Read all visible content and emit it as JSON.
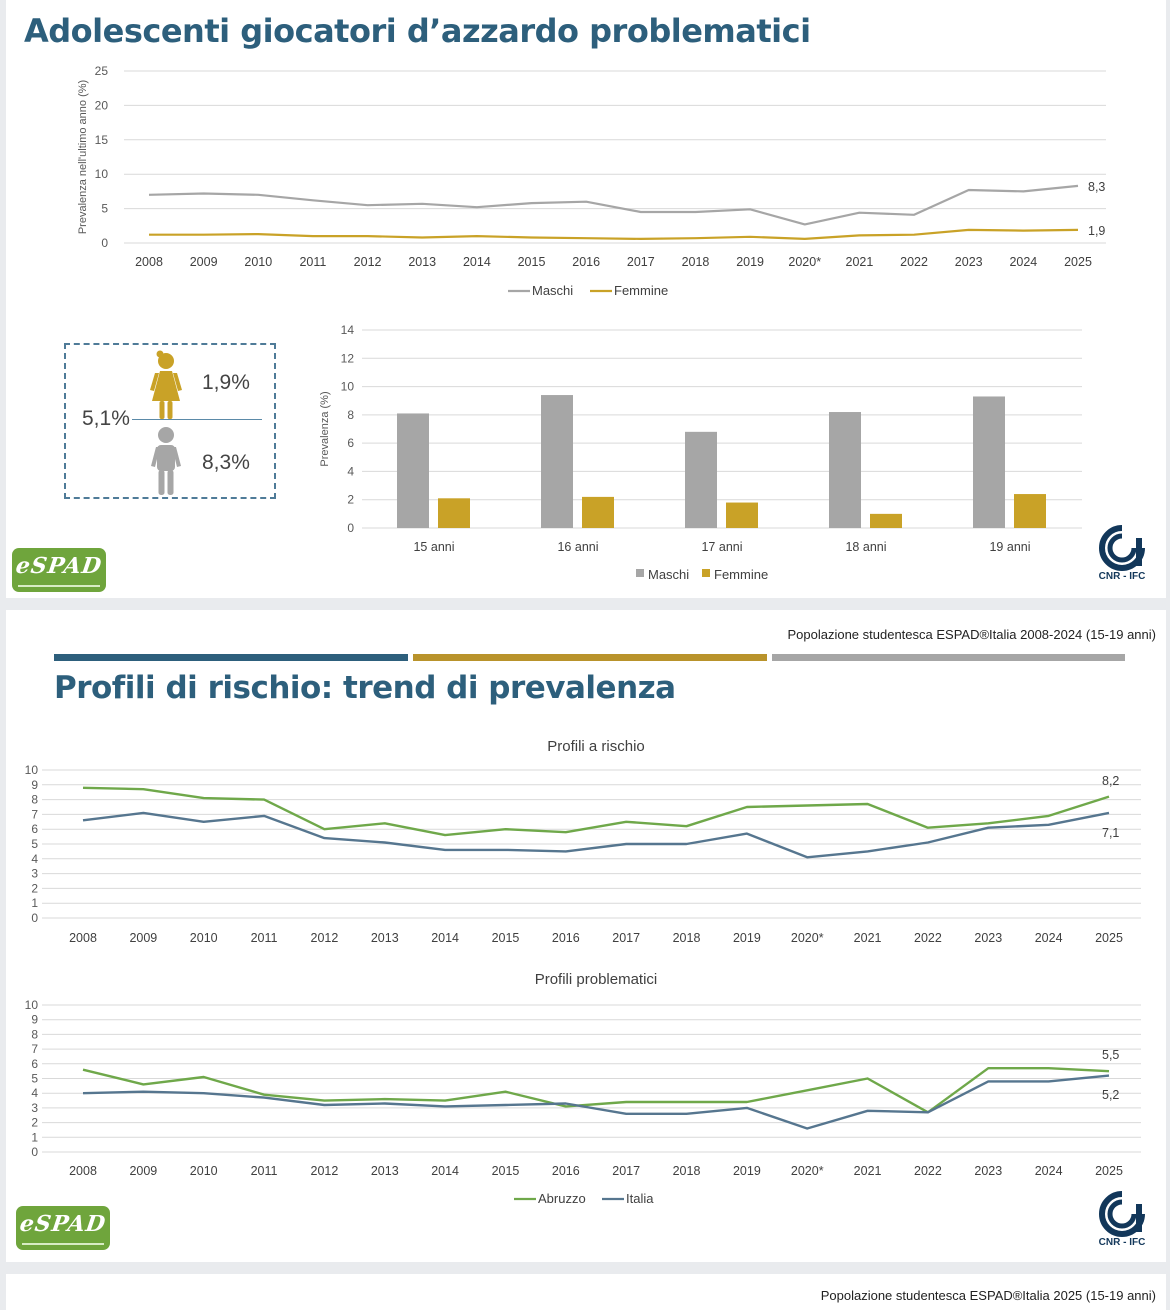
{
  "panel1": {
    "title": "Adolescenti  giocatori d’azzardo problematici",
    "trend_chart": {
      "ylabel": "Prevalenza nell'ultimo anno (%)",
      "end_labels": [
        "8,3",
        "1,9"
      ]
    },
    "summary": {
      "total": "5,1%",
      "female_pct": "1,9%",
      "male_pct": "8,3%",
      "female_icon": "female-figure-icon",
      "male_icon": "male-figure-icon"
    },
    "age_chart": {
      "ylabel": "Prevalenza (%)"
    }
  },
  "panel2": {
    "source": "Popolazione studentesca ESPAD®Italia 2008-2024 (15-19 anni)",
    "title": "Profili di rischio: trend di prevalenza",
    "risk_chart": {
      "title": "Profili a rischio",
      "end_labels": [
        "8,2",
        "7,1"
      ]
    },
    "problem_chart": {
      "title": "Profili problematici",
      "end_labels": [
        "5,5",
        "5,2"
      ]
    }
  },
  "panel3": {
    "source": "Popolazione studentesca ESPAD®Italia 2025 (15-19 anni)"
  },
  "logos": {
    "espad_text": "eSPAD",
    "cnr_text": "CNR - IFC",
    "cnr_icon": "cnr-logo-icon"
  },
  "colors": {
    "title": "#2d5f7c",
    "male": "#a6a6a6",
    "female": "#c9a227",
    "abruzzo": "#6fa84a",
    "italia": "#56768f",
    "espad_green": "#6fa53c"
  },
  "chart_data": [
    {
      "type": "line",
      "x": [
        "2008",
        "2009",
        "2010",
        "2011",
        "2012",
        "2013",
        "2014",
        "2015",
        "2016",
        "2017",
        "2018",
        "2019",
        "2020*",
        "2021",
        "2022",
        "2023",
        "2024",
        "2025"
      ],
      "series": [
        {
          "name": "Maschi",
          "values": [
            7.0,
            7.2,
            7.0,
            6.2,
            5.5,
            5.7,
            5.2,
            5.8,
            6.0,
            4.5,
            4.5,
            4.9,
            2.7,
            4.4,
            4.1,
            7.7,
            7.5,
            8.3
          ]
        },
        {
          "name": "Femmine",
          "values": [
            1.2,
            1.2,
            1.3,
            1.0,
            1.0,
            0.8,
            1.0,
            0.8,
            0.7,
            0.6,
            0.7,
            0.9,
            0.6,
            1.1,
            1.2,
            1.9,
            1.8,
            1.9
          ]
        }
      ],
      "ylabel": "Prevalenza nell'ultimo anno (%)",
      "ylim": [
        0,
        25
      ],
      "yticks": [
        0,
        5,
        10,
        15,
        20,
        25
      ],
      "legend": "bottom",
      "grid": true
    },
    {
      "type": "bar",
      "categories": [
        "15 anni",
        "16 anni",
        "17 anni",
        "18 anni",
        "19 anni"
      ],
      "series": [
        {
          "name": "Maschi",
          "values": [
            8.1,
            9.4,
            6.8,
            8.2,
            9.3
          ]
        },
        {
          "name": "Femmine",
          "values": [
            2.1,
            2.2,
            1.8,
            1.0,
            2.4
          ]
        }
      ],
      "ylabel": "Prevalenza (%)",
      "ylim": [
        0,
        14
      ],
      "yticks": [
        0,
        2,
        4,
        6,
        8,
        10,
        12,
        14
      ],
      "legend": "bottom",
      "grid": true
    },
    {
      "type": "line",
      "title": "Profili a rischio",
      "x": [
        "2008",
        "2009",
        "2010",
        "2011",
        "2012",
        "2013",
        "2014",
        "2015",
        "2016",
        "2017",
        "2018",
        "2019",
        "2020*",
        "2021",
        "2022",
        "2023",
        "2024",
        "2025"
      ],
      "series": [
        {
          "name": "Abruzzo",
          "values": [
            8.8,
            8.7,
            8.1,
            8.0,
            6.0,
            6.4,
            5.6,
            6.0,
            5.8,
            6.5,
            6.2,
            7.5,
            7.6,
            7.7,
            6.1,
            6.4,
            6.9,
            8.2
          ]
        },
        {
          "name": "Italia",
          "values": [
            6.6,
            7.1,
            6.5,
            6.9,
            5.4,
            5.1,
            4.6,
            4.6,
            4.5,
            5.0,
            5.0,
            5.7,
            4.1,
            4.5,
            5.1,
            6.1,
            6.3,
            7.1
          ]
        }
      ],
      "ylim": [
        0,
        10
      ],
      "yticks": [
        0,
        1,
        2,
        3,
        4,
        5,
        6,
        7,
        8,
        9,
        10
      ],
      "grid": true
    },
    {
      "type": "line",
      "title": "Profili problematici",
      "x": [
        "2008",
        "2009",
        "2010",
        "2011",
        "2012",
        "2013",
        "2014",
        "2015",
        "2016",
        "2017",
        "2018",
        "2019",
        "2020*",
        "2021",
        "2022",
        "2023",
        "2024",
        "2025"
      ],
      "series": [
        {
          "name": "Abruzzo",
          "values": [
            5.6,
            4.6,
            5.1,
            3.9,
            3.5,
            3.6,
            3.5,
            4.1,
            3.1,
            3.4,
            3.4,
            3.4,
            4.2,
            5.0,
            2.7,
            5.7,
            5.7,
            5.5
          ]
        },
        {
          "name": "Italia",
          "values": [
            4.0,
            4.1,
            4.0,
            3.7,
            3.2,
            3.3,
            3.1,
            3.2,
            3.3,
            2.6,
            2.6,
            3.0,
            1.6,
            2.8,
            2.7,
            4.8,
            4.8,
            5.2
          ]
        }
      ],
      "ylim": [
        0,
        10
      ],
      "yticks": [
        0,
        1,
        2,
        3,
        4,
        5,
        6,
        7,
        8,
        9,
        10
      ],
      "legend": "bottom",
      "grid": true
    }
  ]
}
